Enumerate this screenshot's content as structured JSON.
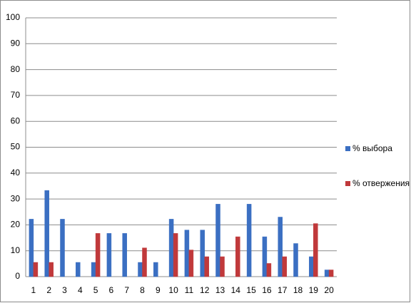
{
  "chart_data": {
    "type": "bar",
    "categories": [
      "1",
      "2",
      "3",
      "4",
      "5",
      "6",
      "7",
      "8",
      "9",
      "10",
      "11",
      "12",
      "13",
      "14",
      "15",
      "16",
      "17",
      "18",
      "19",
      "20"
    ],
    "series": [
      {
        "name": "% выбора",
        "color": "#3b6fc2",
        "values": [
          22.2,
          33.3,
          22.2,
          5.5,
          5.5,
          16.7,
          16.7,
          5.5,
          5.5,
          22.2,
          18,
          18,
          28,
          0,
          28,
          15.4,
          23,
          12.8,
          7.7,
          2.6
        ]
      },
      {
        "name": "% отвержения",
        "color": "#c0393b",
        "values": [
          5.5,
          5.5,
          0,
          0,
          16.7,
          0,
          0,
          11.1,
          0,
          16.7,
          10.3,
          7.7,
          7.7,
          15.4,
          0,
          5.1,
          7.7,
          0,
          20.5,
          2.6
        ]
      }
    ],
    "ylim": [
      0,
      100
    ],
    "yticks": [
      0,
      10,
      20,
      30,
      40,
      50,
      60,
      70,
      80,
      90,
      100
    ],
    "grid": true,
    "legend": "right"
  }
}
